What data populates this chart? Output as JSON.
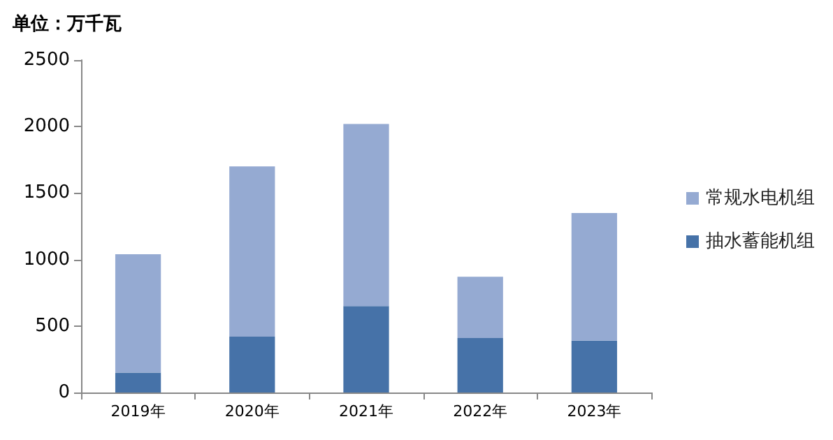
{
  "chart_data": {
    "type": "bar",
    "ylabel": "单位：万千瓦",
    "categories": [
      "2019年",
      "2020年",
      "2021年",
      "2022年",
      "2023年"
    ],
    "series": [
      {
        "name": "抽水蓄能机组",
        "color": "#4672a8",
        "values": [
          150,
          420,
          650,
          410,
          390
        ]
      },
      {
        "name": "常规水电机组",
        "color": "#95aad2",
        "values": [
          890,
          1280,
          1370,
          460,
          960
        ]
      }
    ],
    "stacked": true,
    "ylim": [
      0,
      2500
    ],
    "yticks": [
      0,
      500,
      1000,
      1500,
      2000,
      2500
    ],
    "grid": false,
    "legend": "right"
  }
}
